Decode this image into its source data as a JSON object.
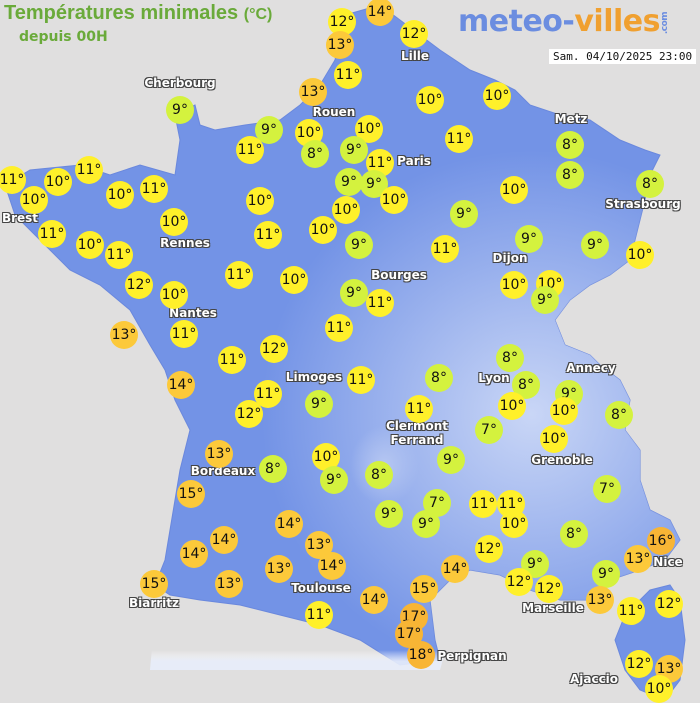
{
  "header": {
    "title": "Températures minimales",
    "unit": "(°C)",
    "subtitle": "depuis 00H",
    "logo": {
      "part1": "meteo-",
      "part2": "villes",
      "suffix": ".com"
    },
    "datetime": "Sam. 04/10/2025 23:00"
  },
  "colors": {
    "land": "#7393e6",
    "land_high": "#b9c9f2",
    "sea": "#e0dfdf",
    "cool": "#d4f23e",
    "mild": "#fff02a",
    "warm": "#fcc93a",
    "hot": "#f8b535",
    "title_green": "#6aaa3a",
    "logo_blue": "#6b8de0",
    "logo_orange": "#f0a030"
  },
  "cities": [
    "Cherbourg",
    "Lille",
    "Rouen",
    "Paris",
    "Metz",
    "Strasbourg",
    "Brest",
    "Rennes",
    "Dijon",
    "Bourges",
    "Nantes",
    "Limoges",
    "Clermont Ferrand",
    "Annecy",
    "Lyon",
    "Grenoble",
    "Bordeaux",
    "Nice",
    "Toulouse",
    "Marseille",
    "Biarritz",
    "Perpignan",
    "Ajaccio"
  ],
  "readings": [
    12,
    14,
    13,
    12,
    11,
    13,
    9,
    10,
    10,
    9,
    10,
    10,
    11,
    8,
    9,
    11,
    11,
    8,
    8,
    8,
    11,
    10,
    10,
    11,
    10,
    11,
    9,
    9,
    10,
    10,
    10,
    10,
    11,
    10,
    11,
    10,
    9,
    10,
    11,
    9,
    11,
    9,
    9,
    10,
    12,
    10,
    11,
    10,
    9,
    11,
    10,
    10,
    9,
    13,
    11,
    11,
    11,
    12,
    14,
    11,
    9,
    12,
    11,
    8,
    8,
    8,
    9,
    10,
    10,
    8,
    11,
    7,
    10,
    13,
    8,
    10,
    9,
    8,
    9,
    15,
    7,
    9,
    7,
    9,
    11,
    11,
    10,
    8,
    14,
    13,
    14,
    14,
    12,
    16,
    13,
    13,
    14,
    13,
    15,
    14,
    9,
    12,
    12,
    15,
    14,
    9,
    13,
    12,
    11,
    11,
    17,
    17,
    18,
    12,
    13,
    10
  ],
  "degree_symbol": "°"
}
